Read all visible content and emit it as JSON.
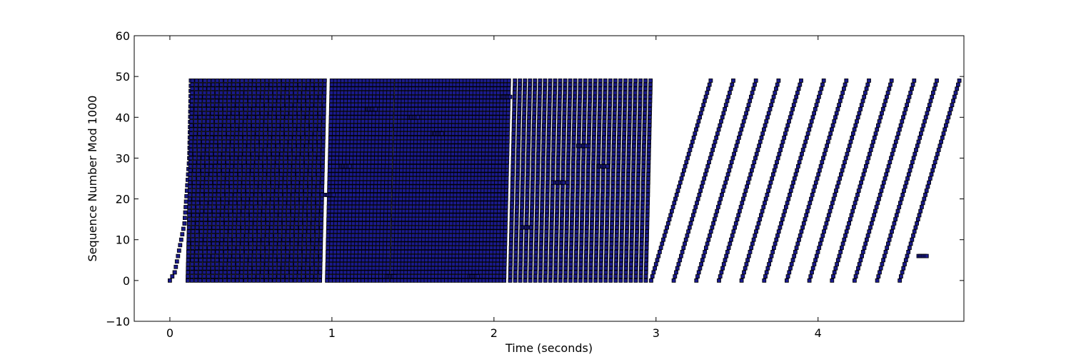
{
  "chart_data": {
    "type": "scatter",
    "title": "",
    "xlabel": "Time (seconds)",
    "ylabel": "Sequence Number Mod 1000",
    "xlim": [
      -0.22,
      4.9
    ],
    "ylim": [
      -10,
      60
    ],
    "xticks": [
      0,
      1,
      2,
      3,
      4
    ],
    "yticks": [
      -10,
      0,
      10,
      20,
      30,
      40,
      50,
      60
    ],
    "grid": false,
    "legend": "none",
    "marker_fill": "#1a1a8c",
    "marker_edge": "#000000",
    "series": [
      {
        "segments": [
          {
            "t0": 0.0,
            "t1": 0.03,
            "y0": 0,
            "y1": 2
          },
          {
            "t0": 0.03,
            "t1": 0.09,
            "y0": 2,
            "y1": 14
          },
          {
            "t0": 0.09,
            "t1": 0.12,
            "y0": 14,
            "y1": 30
          },
          {
            "t0": 0.12,
            "t1": 0.13,
            "y0": 30,
            "y1": 49
          },
          {
            "t0": 0.11,
            "t1": 0.95,
            "y0": 0,
            "y1": 49,
            "spacing": 0.0255
          },
          {
            "t0": 0.97,
            "t1": 1.35,
            "y0": 0,
            "y1": 49,
            "spacing": 0.022
          },
          {
            "t0": 1.37,
            "t1": 2.08,
            "y0": 0,
            "y1": 49,
            "spacing": 0.021
          },
          {
            "t0": 2.1,
            "t1": 2.95,
            "y0": 0,
            "y1": 49,
            "spacing": 0.031
          },
          {
            "t0": 2.97,
            "t1": 4.62,
            "y0": 0,
            "y1": 49,
            "spacing": 0.1395
          }
        ],
        "steps": [
          {
            "t": 0.96,
            "y": 21
          },
          {
            "t": 1.06,
            "y": 28
          },
          {
            "t": 1.22,
            "y": 42
          },
          {
            "t": 1.34,
            "y": 1
          },
          {
            "t": 1.48,
            "y": 40
          },
          {
            "t": 1.63,
            "y": 36
          },
          {
            "t": 1.85,
            "y": 1
          },
          {
            "t": 2.05,
            "y": 45
          },
          {
            "t": 2.18,
            "y": 13
          },
          {
            "t": 2.38,
            "y": 24
          },
          {
            "t": 2.52,
            "y": 33
          },
          {
            "t": 2.65,
            "y": 28
          },
          {
            "t": 4.62,
            "y": 6
          }
        ]
      }
    ]
  }
}
